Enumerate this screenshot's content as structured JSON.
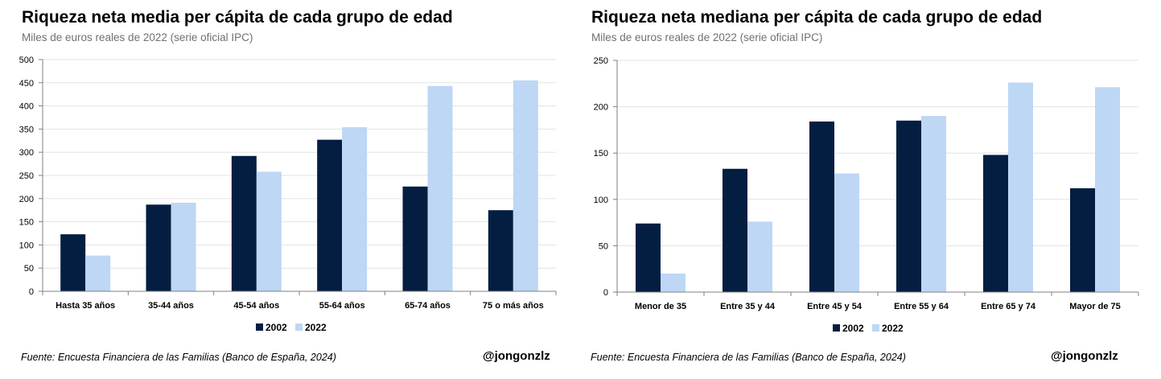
{
  "colors": {
    "series_2002": "#041E42",
    "series_2022": "#BDD7F5",
    "grid": "#E3E3E3",
    "axis": "#808080"
  },
  "chart_data": [
    {
      "type": "bar",
      "title": "Riqueza neta media per cápita de cada grupo de edad",
      "subtitle": "Miles de euros reales de 2022 (serie oficial IPC)",
      "categories": [
        "Hasta 35 años",
        "35-44 años",
        "45-54 años",
        "55-64 años",
        "65-74 años",
        "75 o más años"
      ],
      "series": [
        {
          "name": "2002",
          "values": [
            123,
            187,
            292,
            327,
            226,
            175
          ]
        },
        {
          "name": "2022",
          "values": [
            77,
            191,
            258,
            354,
            443,
            455
          ]
        }
      ],
      "ylim": [
        0,
        500
      ],
      "yticks": [
        "0",
        "50",
        "100",
        "150",
        "200",
        "250",
        "300",
        "350",
        "400",
        "450",
        "500"
      ],
      "grid": true,
      "legend": "bottom",
      "source": "Fuente: Encuesta Financiera de las Familias (Banco de España, 2024)",
      "handle": "@jongonzlz"
    },
    {
      "type": "bar",
      "title": "Riqueza neta mediana per cápita de cada grupo de edad",
      "subtitle": "Miles de euros reales de 2022 (serie oficial IPC)",
      "categories": [
        "Menor de 35",
        "Entre 35 y 44",
        "Entre 45 y 54",
        "Entre 55 y 64",
        "Entre 65 y 74",
        "Mayor de 75"
      ],
      "series": [
        {
          "name": "2002",
          "values": [
            74,
            133,
            184,
            185,
            148,
            112
          ]
        },
        {
          "name": "2022",
          "values": [
            20,
            76,
            128,
            190,
            226,
            221
          ]
        }
      ],
      "ylim": [
        0,
        250
      ],
      "yticks": [
        "0",
        "50",
        "100",
        "150",
        "200",
        "250"
      ],
      "grid": true,
      "legend": "bottom",
      "source": "Fuente: Encuesta Financiera de las Familias (Banco de España, 2024)",
      "handle": "@jongonzlz"
    }
  ]
}
